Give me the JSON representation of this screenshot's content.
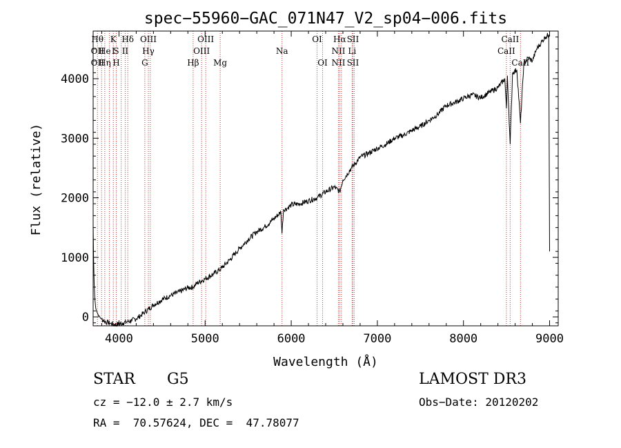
{
  "chart_data": {
    "type": "line",
    "title": "spec−55960−GAC_071N47_V2_sp04−006.fits",
    "xlabel": "Wavelength (Å)",
    "ylabel": "Flux (relative)",
    "xlim": [
      3700,
      9100
    ],
    "ylim": [
      -150,
      4800
    ],
    "xticks": [
      4000,
      5000,
      6000,
      7000,
      8000,
      9000
    ],
    "xtick_labels": [
      "4000",
      "5000",
      "6000",
      "7000",
      "8000",
      "9000"
    ],
    "yticks": [
      0,
      1000,
      2000,
      3000,
      4000
    ],
    "ytick_labels": [
      "0",
      "1000",
      "2000",
      "3000",
      "4000"
    ],
    "series": [
      {
        "name": "flux",
        "color": "#000000",
        "x": [
          3700,
          3705,
          3712,
          3720,
          3730,
          3745,
          3760,
          3780,
          3800,
          3830,
          3860,
          3900,
          3950,
          4000,
          4050,
          4100,
          4150,
          4200,
          4250,
          4300,
          4400,
          4500,
          4600,
          4700,
          4800,
          4861,
          4900,
          5000,
          5100,
          5200,
          5300,
          5400,
          5500,
          5600,
          5700,
          5800,
          5880,
          5893,
          5910,
          5950,
          6000,
          6100,
          6200,
          6300,
          6400,
          6500,
          6563,
          6600,
          6700,
          6800,
          6900,
          7000,
          7100,
          7200,
          7300,
          7400,
          7500,
          7600,
          7700,
          7800,
          7900,
          8000,
          8100,
          8200,
          8300,
          8400,
          8480,
          8498,
          8510,
          8542,
          8570,
          8620,
          8662,
          8700,
          8750,
          8800,
          8850,
          8900,
          8950,
          8990,
          9000
        ],
        "y": [
          1550,
          1000,
          550,
          300,
          150,
          80,
          30,
          -10,
          -40,
          -70,
          -90,
          -110,
          -130,
          -120,
          -100,
          -80,
          -60,
          -30,
          20,
          80,
          200,
          290,
          360,
          420,
          490,
          500,
          560,
          640,
          720,
          830,
          980,
          1150,
          1300,
          1430,
          1520,
          1650,
          1760,
          1400,
          1800,
          1820,
          1880,
          1900,
          1950,
          2000,
          2100,
          2180,
          2100,
          2300,
          2500,
          2680,
          2750,
          2830,
          2900,
          3000,
          3050,
          3130,
          3200,
          3300,
          3400,
          3550,
          3600,
          3670,
          3730,
          3680,
          3770,
          3850,
          4000,
          3500,
          4050,
          2900,
          4100,
          4150,
          3250,
          4250,
          4350,
          4300,
          4500,
          4600,
          4700,
          4740,
          1100
        ]
      }
    ],
    "line_color": "#cc3333",
    "lines": [
      {
        "wl": 3750,
        "rows": [
          [
            1,
            "Hθ"
          ],
          [
            2,
            "OII"
          ],
          [
            3,
            "OII"
          ]
        ]
      },
      {
        "wl": 3798
      },
      {
        "wl": 3835,
        "rows": [
          [
            2,
            "He"
          ],
          [
            3,
            "Hη"
          ]
        ]
      },
      {
        "wl": 3889
      },
      {
        "wl": 3934,
        "rows": [
          [
            1,
            "K"
          ],
          [
            2,
            "I"
          ]
        ]
      },
      {
        "wl": 3968,
        "rows": [
          [
            2,
            "S"
          ],
          [
            3,
            "H"
          ]
        ]
      },
      {
        "wl": 4026
      },
      {
        "wl": 4072,
        "rows": [
          [
            2,
            "II"
          ]
        ]
      },
      {
        "wl": 4102,
        "rows": [
          [
            1,
            "Hδ"
          ]
        ]
      },
      {
        "wl": 4300,
        "rows": [
          [
            3,
            "G"
          ]
        ]
      },
      {
        "wl": 4341,
        "rows": [
          [
            1,
            "OIII"
          ],
          [
            2,
            "Hγ"
          ]
        ]
      },
      {
        "wl": 4363
      },
      {
        "wl": 4861,
        "rows": [
          [
            3,
            "Hβ"
          ]
        ]
      },
      {
        "wl": 4959,
        "rows": [
          [
            2,
            "OIII"
          ]
        ]
      },
      {
        "wl": 5007,
        "rows": [
          [
            1,
            "OIII"
          ]
        ]
      },
      {
        "wl": 5175,
        "rows": [
          [
            3,
            "Mg"
          ]
        ]
      },
      {
        "wl": 5893,
        "rows": [
          [
            2,
            "Na"
          ]
        ]
      },
      {
        "wl": 6300,
        "rows": [
          [
            1,
            "OI"
          ]
        ]
      },
      {
        "wl": 6364,
        "rows": [
          [
            3,
            "OI"
          ]
        ]
      },
      {
        "wl": 6548,
        "rows": [
          [
            2,
            "NII"
          ],
          [
            3,
            "NII"
          ]
        ]
      },
      {
        "wl": 6563,
        "rows": [
          [
            1,
            "Hα"
          ]
        ]
      },
      {
        "wl": 6583
      },
      {
        "wl": 6707,
        "rows": [
          [
            2,
            "Li"
          ]
        ]
      },
      {
        "wl": 6716,
        "rows": [
          [
            1,
            "SII"
          ],
          [
            3,
            "SII"
          ]
        ]
      },
      {
        "wl": 6731
      },
      {
        "wl": 8498,
        "rows": [
          [
            2,
            "CaII"
          ]
        ]
      },
      {
        "wl": 8542,
        "rows": [
          [
            1,
            "CaII"
          ]
        ]
      },
      {
        "wl": 8662,
        "rows": [
          [
            3,
            "CaII"
          ]
        ]
      }
    ]
  },
  "info": {
    "class_label": "STAR",
    "subclass_label": "G5",
    "survey": "LAMOST DR3",
    "cz": "cz = −12.0 ± 2.7 km/s",
    "obs_date": "Obs−Date: 20120202",
    "coords": "RA =  70.57624, DEC =  47.78077"
  }
}
